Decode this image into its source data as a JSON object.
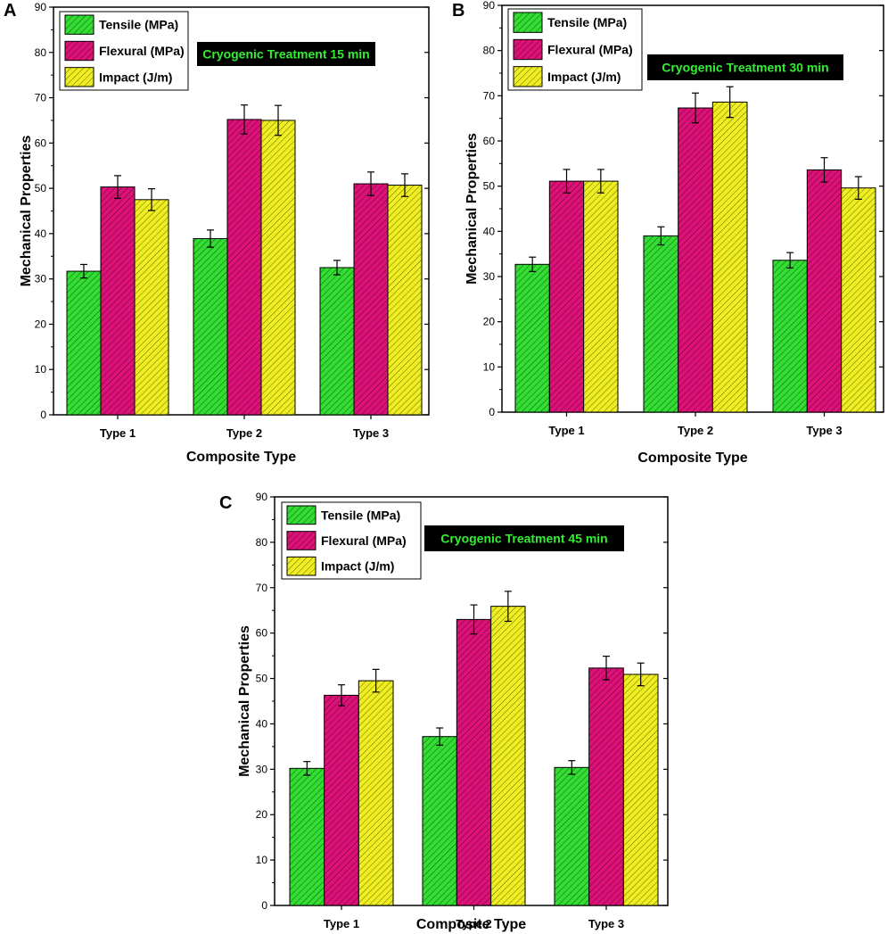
{
  "series_info": [
    {
      "name": "Tensile (MPa)",
      "color": "#33dd33"
    },
    {
      "name": "Flexural (MPa)",
      "color": "#dd1177"
    },
    {
      "name": "Impact (J/m)",
      "color": "#eeee22"
    }
  ],
  "tag_colors": {
    "background": "#000000",
    "text": "#33ee33"
  },
  "chart_data": [
    {
      "panel": "A",
      "type": "bar",
      "tag": "Cryogenic Treatment 15 min",
      "categories": [
        "Type 1",
        "Type 2",
        "Type 3"
      ],
      "series": [
        {
          "name": "Tensile (MPa)",
          "values": [
            31.7,
            38.9,
            32.5
          ],
          "errors": [
            1.5,
            1.9,
            1.6
          ]
        },
        {
          "name": "Flexural (MPa)",
          "values": [
            50.3,
            65.2,
            51.0
          ],
          "errors": [
            2.5,
            3.2,
            2.6
          ]
        },
        {
          "name": "Impact (J/m)",
          "values": [
            47.5,
            65.0,
            50.7
          ],
          "errors": [
            2.4,
            3.3,
            2.5
          ]
        }
      ],
      "xlabel": "Composite Type",
      "ylabel": "Mechanical Properties",
      "ylim": [
        0,
        90
      ],
      "yticks": [
        0,
        10,
        20,
        30,
        40,
        50,
        60,
        70,
        80,
        90
      ],
      "legend": "top-left"
    },
    {
      "panel": "B",
      "type": "bar",
      "tag": "Cryogenic Treatment 30 min",
      "categories": [
        "Type 1",
        "Type 2",
        "Type 3"
      ],
      "series": [
        {
          "name": "Tensile (MPa)",
          "values": [
            32.7,
            39.0,
            33.6
          ],
          "errors": [
            1.6,
            2.0,
            1.7
          ]
        },
        {
          "name": "Flexural (MPa)",
          "values": [
            51.1,
            67.3,
            53.6
          ],
          "errors": [
            2.6,
            3.3,
            2.7
          ]
        },
        {
          "name": "Impact (J/m)",
          "values": [
            51.1,
            68.6,
            49.6
          ],
          "errors": [
            2.6,
            3.4,
            2.5
          ]
        }
      ],
      "xlabel": "Composite Type",
      "ylabel": "Mechanical Properties",
      "ylim": [
        0,
        90
      ],
      "yticks": [
        0,
        10,
        20,
        30,
        40,
        50,
        60,
        70,
        80,
        90
      ],
      "legend": "top-left"
    },
    {
      "panel": "C",
      "type": "bar",
      "tag": "Cryogenic Treatment 45 min",
      "categories": [
        "Type 1",
        "Type 2",
        "Type 3"
      ],
      "series": [
        {
          "name": "Tensile (MPa)",
          "values": [
            30.2,
            37.2,
            30.4
          ],
          "errors": [
            1.5,
            1.9,
            1.5
          ]
        },
        {
          "name": "Flexural (MPa)",
          "values": [
            46.3,
            63.0,
            52.3
          ],
          "errors": [
            2.3,
            3.2,
            2.6
          ]
        },
        {
          "name": "Impact (J/m)",
          "values": [
            49.5,
            65.9,
            50.9
          ],
          "errors": [
            2.5,
            3.3,
            2.5
          ]
        }
      ],
      "xlabel": "Composite Type",
      "ylabel": "Mechanical Properties",
      "ylim": [
        0,
        90
      ],
      "yticks": [
        0,
        10,
        20,
        30,
        40,
        50,
        60,
        70,
        80,
        90
      ],
      "legend": "top-left"
    }
  ]
}
